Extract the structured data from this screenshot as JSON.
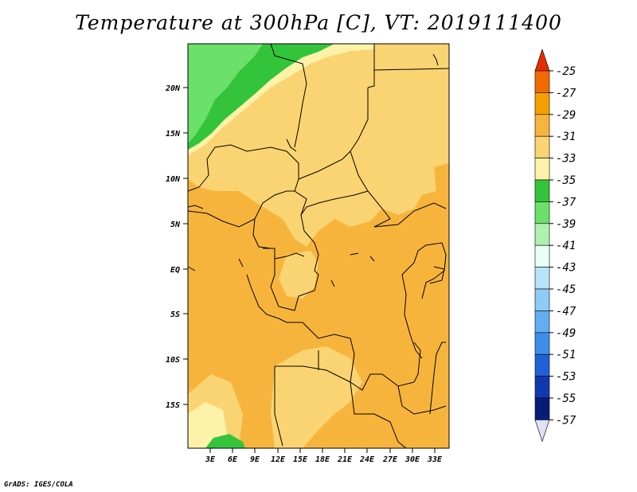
{
  "title": "Temperature at 300hPa [C], VT: 2019111400",
  "credit": "GrADS: IGES/COLA",
  "map": {
    "lat_labels": [
      "20N",
      "15N",
      "10N",
      "5N",
      "EQ",
      "5S",
      "10S",
      "15S"
    ],
    "lon_labels": [
      "3E",
      "6E",
      "9E",
      "12E",
      "15E",
      "18E",
      "21E",
      "24E",
      "27E",
      "30E",
      "33E"
    ]
  },
  "colorbar": {
    "labels": [
      "-25",
      "-27",
      "-29",
      "-31",
      "-33",
      "-35",
      "-37",
      "-39",
      "-41",
      "-43",
      "-45",
      "-47",
      "-49",
      "-51",
      "-53",
      "-55",
      "-57"
    ],
    "colors": [
      "#e62b00",
      "#f06a00",
      "#f5a000",
      "#f7b43c",
      "#fad472",
      "#fdf2a8",
      "#33c43b",
      "#6be06b",
      "#b0f0b0",
      "#e8fff8",
      "#b8e4fb",
      "#8ecbf7",
      "#63aef2",
      "#3d8deb",
      "#2061d6",
      "#0e39b0",
      "#081c7a",
      "#e0e0f8"
    ]
  },
  "palette": {
    "orange": "#f7b43c",
    "yellow": "#fad472",
    "pale_yellow": "#fdf2a8",
    "green_dark": "#33c43b",
    "green_light": "#6be06b"
  }
}
